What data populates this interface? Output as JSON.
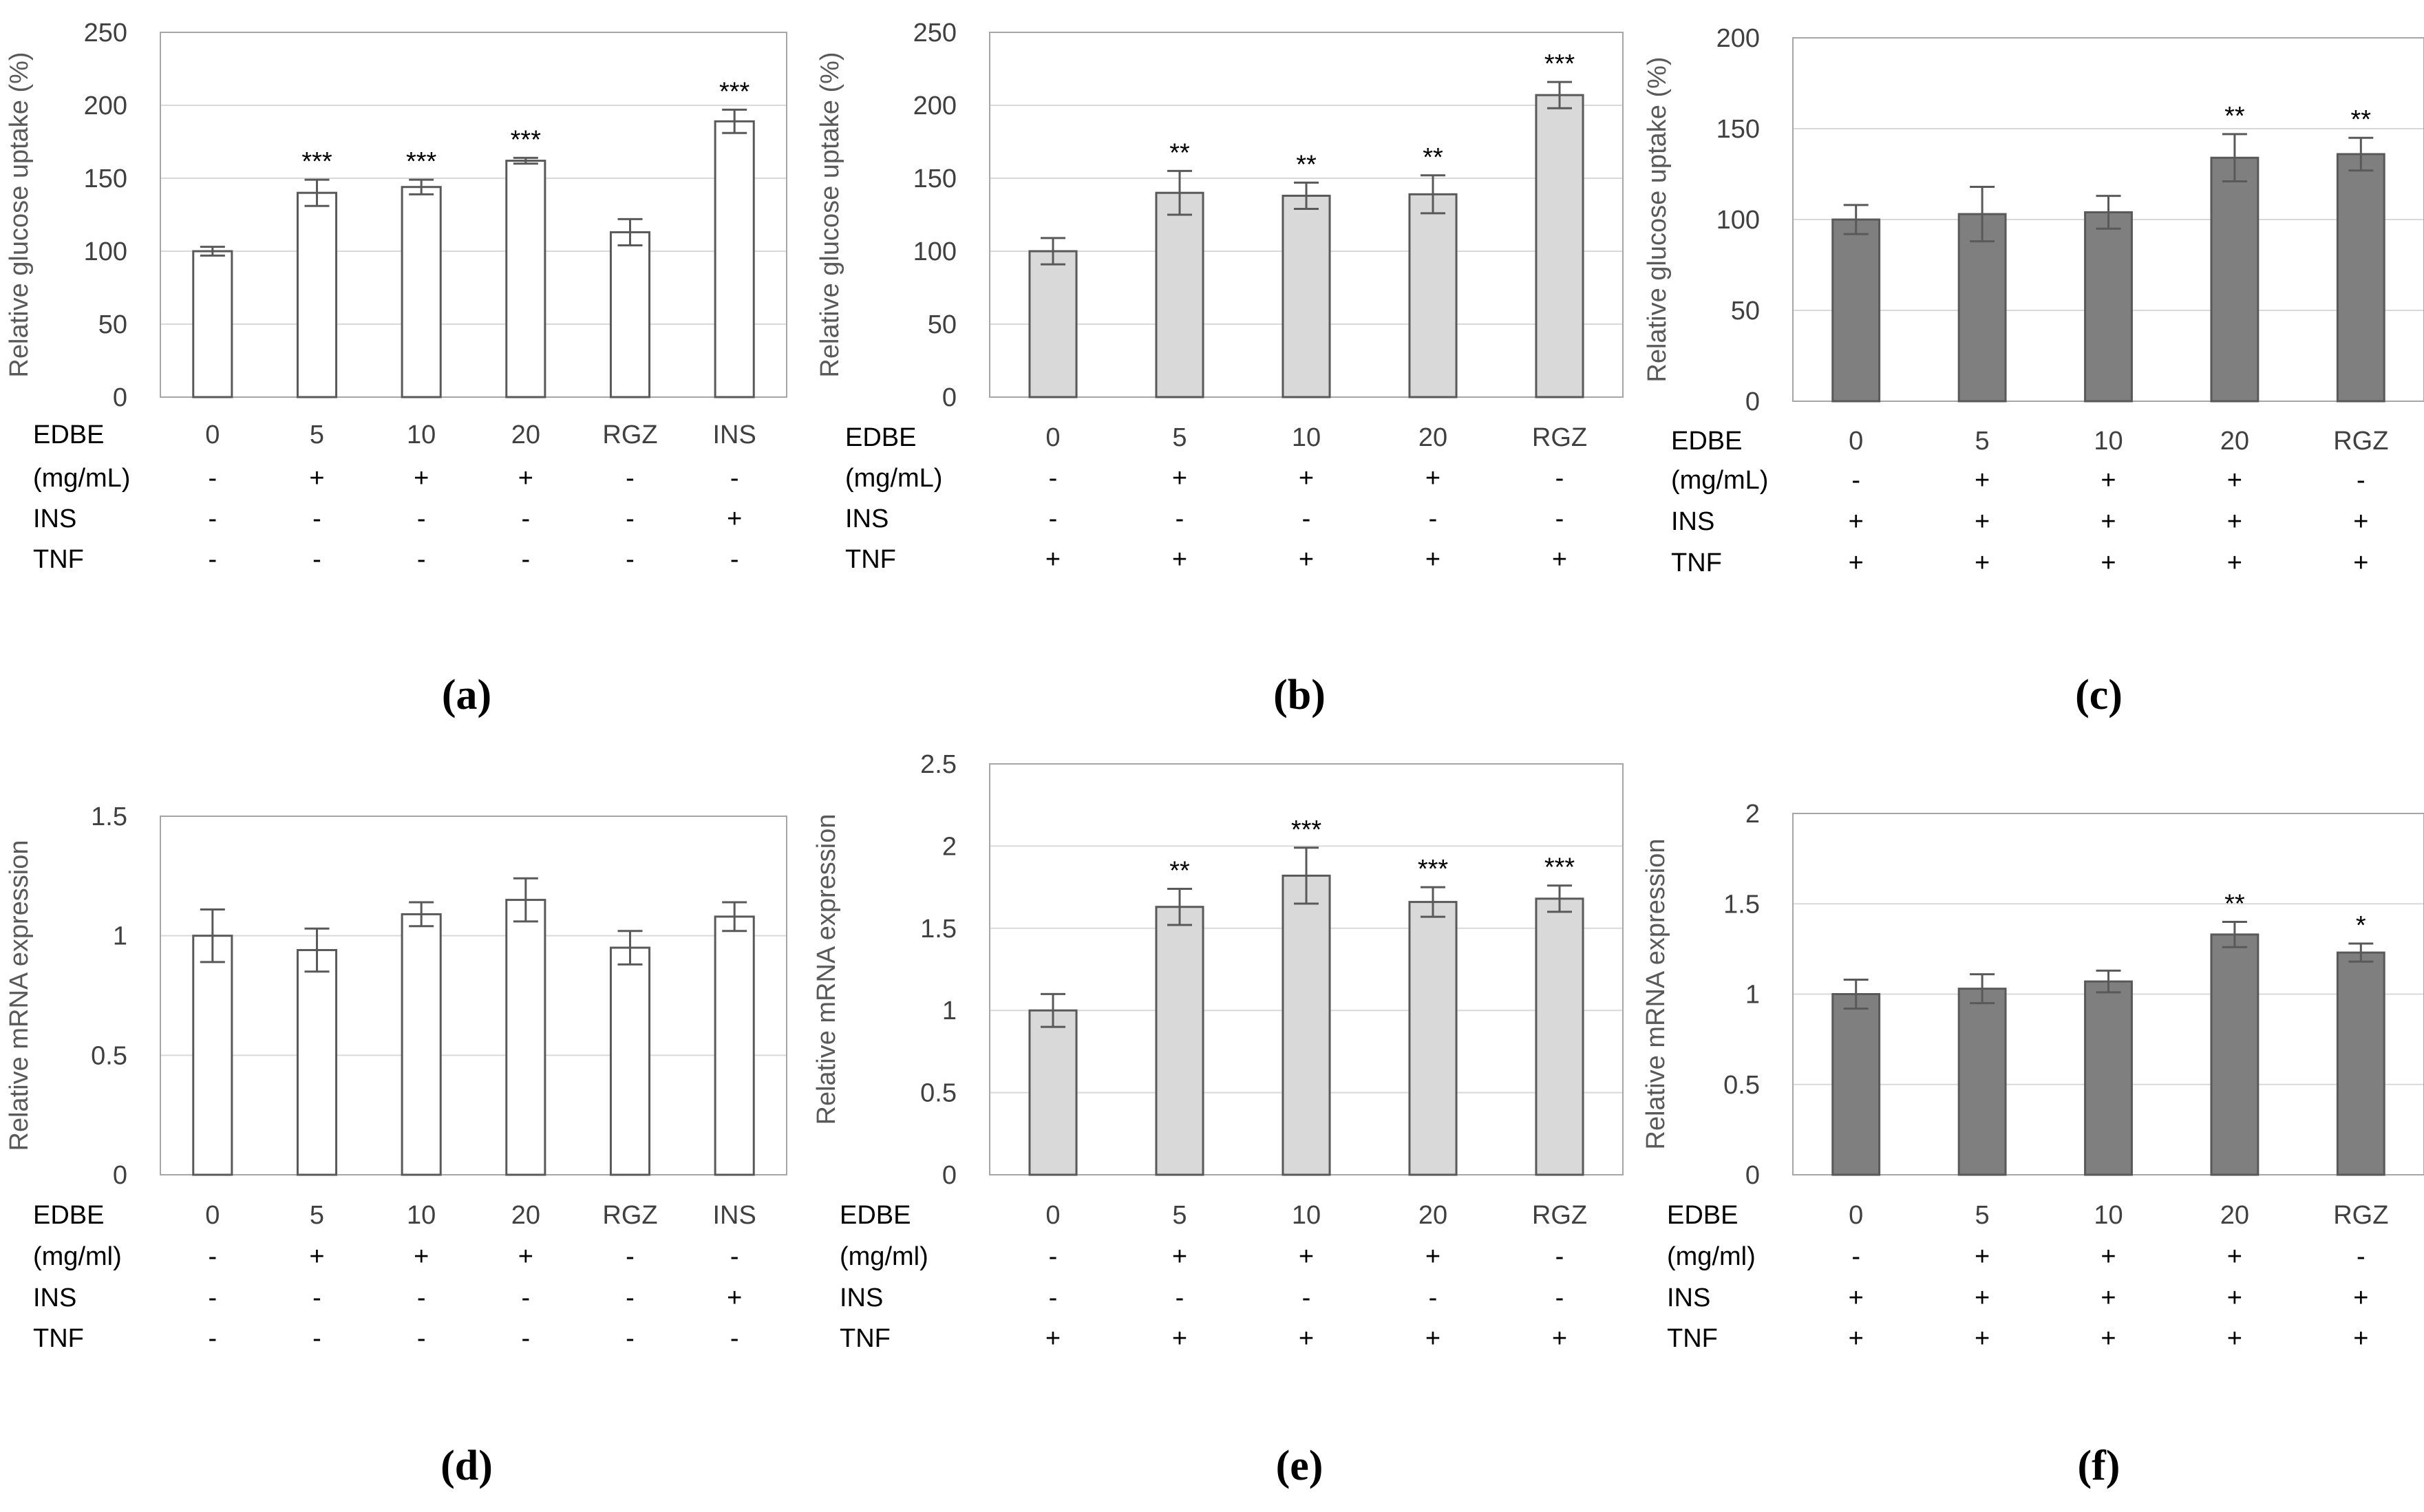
{
  "chart_data": [
    {
      "type": "bar",
      "panel_label": "(a)",
      "ylabel": "Relative glucose uptake (%)",
      "ylim": [
        0,
        250
      ],
      "yticks": [
        "0",
        "50",
        "100",
        "150",
        "200",
        "250"
      ],
      "grid": true,
      "bar_color": "#ffffff",
      "categories": [
        "0",
        "5",
        "10",
        "20",
        "RGZ",
        "INS"
      ],
      "values": [
        100,
        140,
        144,
        162,
        113,
        189
      ],
      "errors": [
        3,
        9,
        5,
        2,
        9,
        8
      ],
      "significance": [
        "",
        "***",
        "***",
        "***",
        "",
        "***"
      ],
      "conditions": [
        {
          "label": "EDBE",
          "values": [
            "0",
            "5",
            "10",
            "20",
            "RGZ",
            "INS"
          ]
        },
        {
          "label": "(mg/mL)",
          "values": [
            "-",
            "+",
            "+",
            "+",
            "-",
            "-"
          ]
        },
        {
          "label": "INS",
          "values": [
            "-",
            "-",
            "-",
            "-",
            "-",
            "+"
          ]
        },
        {
          "label": "TNF",
          "values": [
            "-",
            "-",
            "-",
            "-",
            "-",
            "-"
          ]
        }
      ]
    },
    {
      "type": "bar",
      "panel_label": "(b)",
      "ylabel": "Relative glucose uptake (%)",
      "ylim": [
        0,
        250
      ],
      "yticks": [
        "0",
        "50",
        "100",
        "150",
        "200",
        "250"
      ],
      "grid": true,
      "bar_color": "#d9d9d9",
      "categories": [
        "0",
        "5",
        "10",
        "20",
        "RGZ"
      ],
      "values": [
        100,
        140,
        138,
        139,
        207
      ],
      "errors": [
        9,
        15,
        9,
        13,
        9
      ],
      "significance": [
        "",
        "**",
        "**",
        "**",
        "***"
      ],
      "conditions": [
        {
          "label": "EDBE",
          "values": [
            "0",
            "5",
            "10",
            "20",
            "RGZ"
          ]
        },
        {
          "label": "(mg/mL)",
          "values": [
            "-",
            "+",
            "+",
            "+",
            "-"
          ]
        },
        {
          "label": "INS",
          "values": [
            "-",
            "-",
            "-",
            "-",
            "-"
          ]
        },
        {
          "label": "TNF",
          "values": [
            "+",
            "+",
            "+",
            "+",
            "+"
          ]
        }
      ]
    },
    {
      "type": "bar",
      "panel_label": "(c)",
      "ylabel": "Relative glucose uptake (%)",
      "ylim": [
        0,
        200
      ],
      "yticks": [
        "0",
        "50",
        "100",
        "150",
        "200"
      ],
      "grid": true,
      "bar_color": "#7f7f7f",
      "categories": [
        "0",
        "5",
        "10",
        "20",
        "RGZ"
      ],
      "values": [
        100,
        103,
        104,
        134,
        136
      ],
      "errors": [
        8,
        15,
        9,
        13,
        9
      ],
      "significance": [
        "",
        "",
        "",
        "**",
        "**"
      ],
      "conditions": [
        {
          "label": "EDBE",
          "values": [
            "0",
            "5",
            "10",
            "20",
            "RGZ"
          ]
        },
        {
          "label": "(mg/mL)",
          "values": [
            "-",
            "+",
            "+",
            "+",
            "-"
          ]
        },
        {
          "label": "INS",
          "values": [
            "+",
            "+",
            "+",
            "+",
            "+"
          ]
        },
        {
          "label": "TNF",
          "values": [
            "+",
            "+",
            "+",
            "+",
            "+"
          ]
        }
      ]
    },
    {
      "type": "bar",
      "panel_label": "(d)",
      "ylabel": "Relative mRNA expression",
      "ylim": [
        0,
        1.5
      ],
      "yticks": [
        "0",
        "0.5",
        "1",
        "1.5"
      ],
      "grid": true,
      "bar_color": "#ffffff",
      "categories": [
        "0",
        "5",
        "10",
        "20",
        "RGZ",
        "INS"
      ],
      "values": [
        1.0,
        0.94,
        1.09,
        1.15,
        0.95,
        1.08
      ],
      "errors": [
        0.11,
        0.09,
        0.05,
        0.09,
        0.07,
        0.06
      ],
      "significance": [
        "",
        "",
        "",
        "",
        "",
        ""
      ],
      "conditions": [
        {
          "label": "EDBE",
          "values": [
            "0",
            "5",
            "10",
            "20",
            "RGZ",
            "INS"
          ]
        },
        {
          "label": "(mg/ml)",
          "values": [
            "-",
            "+",
            "+",
            "+",
            "-",
            "-"
          ]
        },
        {
          "label": "INS",
          "values": [
            "-",
            "-",
            "-",
            "-",
            "-",
            "+"
          ]
        },
        {
          "label": "TNF",
          "values": [
            "-",
            "-",
            "-",
            "-",
            "-",
            "-"
          ]
        }
      ]
    },
    {
      "type": "bar",
      "panel_label": "(e)",
      "ylabel": "Relative mRNA expression",
      "ylim": [
        0,
        2.5
      ],
      "yticks": [
        "0",
        "0.5",
        "1",
        "1.5",
        "2",
        "2.5"
      ],
      "grid": true,
      "bar_color": "#d9d9d9",
      "categories": [
        "0",
        "5",
        "10",
        "20",
        "RGZ"
      ],
      "values": [
        1.0,
        1.63,
        1.82,
        1.66,
        1.68
      ],
      "errors": [
        0.1,
        0.11,
        0.17,
        0.09,
        0.08
      ],
      "significance": [
        "",
        "**",
        "***",
        "***",
        "***"
      ],
      "conditions": [
        {
          "label": "EDBE",
          "values": [
            "0",
            "5",
            "10",
            "20",
            "RGZ"
          ]
        },
        {
          "label": "(mg/ml)",
          "values": [
            "-",
            "+",
            "+",
            "+",
            "-"
          ]
        },
        {
          "label": "INS",
          "values": [
            "-",
            "-",
            "-",
            "-",
            "-"
          ]
        },
        {
          "label": "TNF",
          "values": [
            "+",
            "+",
            "+",
            "+",
            "+"
          ]
        }
      ]
    },
    {
      "type": "bar",
      "panel_label": "(f)",
      "ylabel": "Relative mRNA expression",
      "ylim": [
        0,
        2
      ],
      "yticks": [
        "0",
        "0.5",
        "1",
        "1.5",
        "2"
      ],
      "grid": true,
      "bar_color": "#7f7f7f",
      "categories": [
        "0",
        "5",
        "10",
        "20",
        "RGZ"
      ],
      "values": [
        1.0,
        1.03,
        1.07,
        1.33,
        1.23
      ],
      "errors": [
        0.08,
        0.08,
        0.06,
        0.07,
        0.05
      ],
      "significance": [
        "",
        "",
        "",
        "**",
        "*"
      ],
      "conditions": [
        {
          "label": "EDBE",
          "values": [
            "0",
            "5",
            "10",
            "20",
            "RGZ"
          ]
        },
        {
          "label": "(mg/ml)",
          "values": [
            "-",
            "+",
            "+",
            "+",
            "-"
          ]
        },
        {
          "label": "INS",
          "values": [
            "+",
            "+",
            "+",
            "+",
            "+"
          ]
        },
        {
          "label": "TNF",
          "values": [
            "+",
            "+",
            "+",
            "+",
            "+"
          ]
        }
      ]
    }
  ]
}
